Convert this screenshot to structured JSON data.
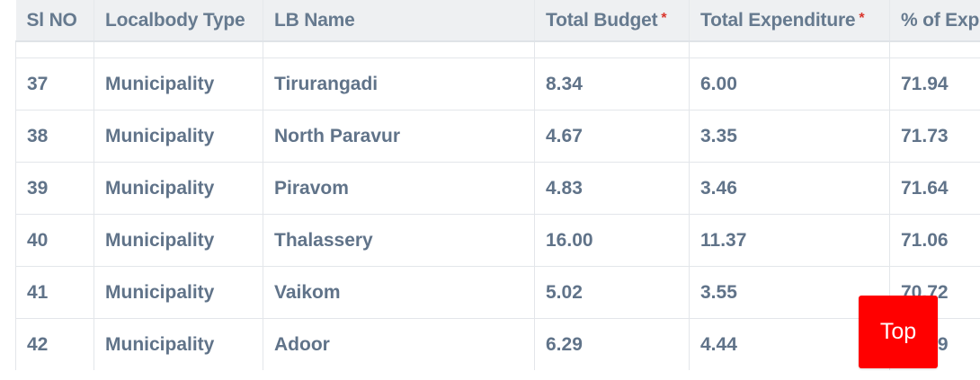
{
  "table": {
    "headers": [
      {
        "label": "Sl NO",
        "required": false
      },
      {
        "label": "Localbody Type",
        "required": false
      },
      {
        "label": "LB Name",
        "required": false
      },
      {
        "label": "Total Budget",
        "required": true
      },
      {
        "label": "Total Expenditure",
        "required": true
      },
      {
        "label": "% of Exp",
        "required": false
      }
    ],
    "required_marker": "*",
    "rows": [
      {
        "sl_no": "37",
        "type": "Municipality",
        "name": "Tirurangadi",
        "budget": "8.34",
        "expenditure": "6.00",
        "percent": "71.94"
      },
      {
        "sl_no": "38",
        "type": "Municipality",
        "name": "North Paravur",
        "budget": "4.67",
        "expenditure": "3.35",
        "percent": "71.73"
      },
      {
        "sl_no": "39",
        "type": "Municipality",
        "name": "Piravom",
        "budget": "4.83",
        "expenditure": "3.46",
        "percent": "71.64"
      },
      {
        "sl_no": "40",
        "type": "Municipality",
        "name": "Thalassery",
        "budget": "16.00",
        "expenditure": "11.37",
        "percent": "71.06"
      },
      {
        "sl_no": "41",
        "type": "Municipality",
        "name": "Vaikom",
        "budget": "5.02",
        "expenditure": "3.55",
        "percent": "70.72"
      },
      {
        "sl_no": "42",
        "type": "Municipality",
        "name": "Adoor",
        "budget": "6.29",
        "expenditure": "4.44",
        "percent": "70.59"
      }
    ]
  },
  "top_button": {
    "label": "Top"
  },
  "colors": {
    "header_bg": "#eef0f2",
    "text": "#607389",
    "required": "#d9342b",
    "top_button": "#ff0000"
  }
}
